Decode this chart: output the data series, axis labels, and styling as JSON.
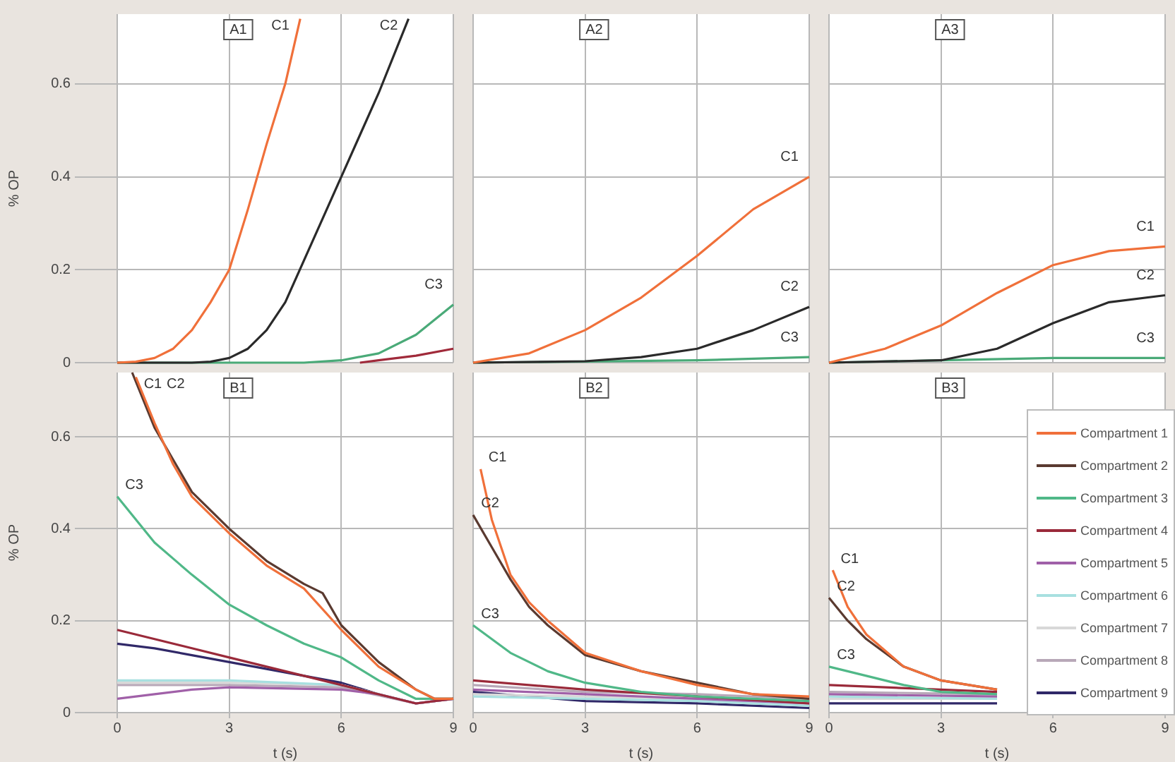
{
  "chart_data": [
    {
      "type": "line",
      "title": "A1",
      "ylabel": "% OP",
      "xlim": [
        0,
        9
      ],
      "ylim": [
        0,
        0.75
      ],
      "xticks": [
        0,
        3,
        6,
        9
      ],
      "yticks": [
        0,
        0.2,
        0.4,
        0.6
      ],
      "grid": true,
      "tick_labels": "y",
      "series": [
        {
          "color": "#f0703a",
          "x": [
            0,
            0.5,
            1,
            1.5,
            2,
            2.5,
            3,
            3.5,
            4,
            4.5,
            4.9
          ],
          "values": [
            0,
            0.002,
            0.01,
            0.03,
            0.07,
            0.13,
            0.2,
            0.33,
            0.47,
            0.6,
            0.74
          ]
        },
        {
          "color": "#2a2a2a",
          "x": [
            0,
            2,
            2.5,
            3,
            3.5,
            4,
            4.5,
            5,
            5.5,
            6,
            6.5,
            7,
            7.5,
            7.8
          ],
          "values": [
            0,
            0,
            0.002,
            0.01,
            0.03,
            0.07,
            0.13,
            0.22,
            0.31,
            0.4,
            0.49,
            0.58,
            0.68,
            0.74
          ]
        },
        {
          "color": "#4aaa78",
          "x": [
            0,
            5,
            6,
            7,
            8,
            9
          ],
          "values": [
            0,
            0,
            0.005,
            0.02,
            0.06,
            0.125
          ]
        },
        {
          "color": "#a02a3a",
          "x": [
            6.5,
            7,
            8,
            9
          ],
          "values": [
            0,
            0.005,
            0.015,
            0.03
          ]
        }
      ],
      "annotations": [
        "C1",
        "C2",
        "C3"
      ]
    },
    {
      "type": "line",
      "title": "A2",
      "xlim": [
        0,
        9
      ],
      "ylim": [
        0,
        0.75
      ],
      "xticks": [
        0,
        3,
        6,
        9
      ],
      "yticks": [
        0,
        0.2,
        0.4,
        0.6
      ],
      "grid": true,
      "tick_labels": false,
      "series": [
        {
          "color": "#f0703a",
          "x": [
            0,
            1.5,
            3,
            4.5,
            6,
            7.5,
            9
          ],
          "values": [
            0,
            0.02,
            0.07,
            0.14,
            0.23,
            0.33,
            0.4
          ]
        },
        {
          "color": "#2a2a2a",
          "x": [
            0,
            3,
            4.5,
            6,
            7.5,
            9
          ],
          "values": [
            0,
            0.003,
            0.012,
            0.03,
            0.07,
            0.12
          ]
        },
        {
          "color": "#4aaa78",
          "x": [
            0,
            6,
            9
          ],
          "values": [
            0,
            0.005,
            0.012
          ]
        }
      ],
      "annotations": [
        "C1",
        "C2",
        "C3"
      ]
    },
    {
      "type": "line",
      "title": "A3",
      "xlim": [
        0,
        9
      ],
      "ylim": [
        0,
        0.75
      ],
      "xticks": [
        0,
        3,
        6,
        9
      ],
      "yticks": [
        0,
        0.2,
        0.4,
        0.6
      ],
      "grid": true,
      "tick_labels": false,
      "series": [
        {
          "color": "#f0703a",
          "x": [
            0,
            1.5,
            3,
            4.5,
            6,
            7.5,
            9
          ],
          "values": [
            0,
            0.03,
            0.08,
            0.15,
            0.21,
            0.24,
            0.25
          ]
        },
        {
          "color": "#2a2a2a",
          "x": [
            0,
            3,
            4.5,
            6,
            7.5,
            9
          ],
          "values": [
            0,
            0.005,
            0.03,
            0.085,
            0.13,
            0.145
          ]
        },
        {
          "color": "#4aaa78",
          "x": [
            0,
            3,
            6,
            9
          ],
          "values": [
            0,
            0.005,
            0.01,
            0.01
          ]
        }
      ],
      "annotations": [
        "C1",
        "C2",
        "C3"
      ]
    },
    {
      "type": "line",
      "title": "B1",
      "xlabel": "t (s)",
      "ylabel": "% OP",
      "xlim": [
        0,
        9
      ],
      "ylim": [
        0,
        0.74
      ],
      "xticks": [
        0,
        3,
        6,
        9
      ],
      "yticks": [
        0,
        0.2,
        0.4,
        0.6
      ],
      "grid": true,
      "series": [
        {
          "color": "#f0703a",
          "x": [
            0.5,
            1,
            1.5,
            2,
            3,
            4,
            5,
            6,
            7,
            8,
            8.5,
            9
          ],
          "values": [
            0.73,
            0.63,
            0.54,
            0.47,
            0.39,
            0.32,
            0.27,
            0.18,
            0.1,
            0.05,
            0.03,
            0.03
          ]
        },
        {
          "color": "#5a3a30",
          "x": [
            0.4,
            1,
            1.5,
            2,
            3,
            4,
            5,
            5.5,
            6,
            7,
            8,
            8.5,
            9
          ],
          "values": [
            0.74,
            0.62,
            0.55,
            0.48,
            0.4,
            0.33,
            0.28,
            0.26,
            0.19,
            0.11,
            0.05,
            0.03,
            0.03
          ]
        },
        {
          "color": "#50b888",
          "x": [
            0,
            1,
            2,
            3,
            4,
            5,
            6,
            7,
            8,
            9
          ],
          "values": [
            0.47,
            0.37,
            0.3,
            0.235,
            0.19,
            0.15,
            0.12,
            0.07,
            0.03,
            0.03
          ]
        },
        {
          "color": "#9a2a3a",
          "x": [
            0,
            1,
            2,
            3,
            4,
            5,
            6,
            7,
            8,
            9
          ],
          "values": [
            0.18,
            0.16,
            0.14,
            0.12,
            0.1,
            0.08,
            0.06,
            0.04,
            0.02,
            0.03
          ]
        },
        {
          "color": "#a060a8",
          "x": [
            0,
            1,
            2,
            3,
            6,
            7,
            8,
            9
          ],
          "values": [
            0.03,
            0.04,
            0.05,
            0.055,
            0.05,
            0.04,
            0.02,
            0.03
          ]
        },
        {
          "color": "#a8e0e0",
          "x": [
            0,
            3,
            6,
            8,
            9
          ],
          "values": [
            0.07,
            0.07,
            0.06,
            0.02,
            0.03
          ]
        },
        {
          "color": "#d8d8d8",
          "x": [
            0,
            3,
            6,
            8,
            9
          ],
          "values": [
            0.065,
            0.065,
            0.06,
            0.02,
            0.03
          ]
        },
        {
          "color": "#b8a8b8",
          "x": [
            0,
            3,
            6,
            8,
            9
          ],
          "values": [
            0.06,
            0.06,
            0.055,
            0.02,
            0.03
          ]
        },
        {
          "color": "#302868",
          "x": [
            0,
            1,
            2,
            3,
            4,
            5,
            6,
            7,
            8,
            9
          ],
          "values": [
            0.15,
            0.14,
            0.125,
            0.11,
            0.095,
            0.08,
            0.065,
            0.04,
            0.02,
            0.03
          ]
        }
      ],
      "annotations": [
        "C1",
        "C2",
        "C3"
      ]
    },
    {
      "type": "line",
      "title": "B2",
      "xlabel": "t (s)",
      "xlim": [
        0,
        9
      ],
      "ylim": [
        0,
        0.74
      ],
      "xticks": [
        0,
        3,
        6,
        9
      ],
      "yticks": [
        0,
        0.2,
        0.4,
        0.6
      ],
      "grid": true,
      "tick_labels": "x",
      "series": [
        {
          "color": "#f0703a",
          "x": [
            0.2,
            0.5,
            1,
            1.5,
            2,
            3,
            4.5,
            6,
            7.5,
            9
          ],
          "values": [
            0.53,
            0.42,
            0.3,
            0.24,
            0.2,
            0.13,
            0.09,
            0.06,
            0.04,
            0.035
          ]
        },
        {
          "color": "#5a3a30",
          "x": [
            0,
            0.5,
            1,
            1.5,
            2,
            3,
            4.5,
            6,
            7.5,
            9
          ],
          "values": [
            0.43,
            0.36,
            0.29,
            0.23,
            0.19,
            0.125,
            0.09,
            0.065,
            0.04,
            0.03
          ]
        },
        {
          "color": "#50b888",
          "x": [
            0,
            1,
            2,
            3,
            4.5,
            6,
            7.5,
            9
          ],
          "values": [
            0.19,
            0.13,
            0.09,
            0.065,
            0.045,
            0.035,
            0.03,
            0.025
          ]
        },
        {
          "color": "#9a2a3a",
          "x": [
            0,
            3,
            6,
            9
          ],
          "values": [
            0.07,
            0.05,
            0.035,
            0.02
          ]
        },
        {
          "color": "#a060a8",
          "x": [
            0,
            3,
            6,
            9
          ],
          "values": [
            0.05,
            0.04,
            0.03,
            0.02
          ]
        },
        {
          "color": "#a8e0e0",
          "x": [
            0,
            3,
            6,
            9
          ],
          "values": [
            0.035,
            0.03,
            0.025,
            0.015
          ]
        },
        {
          "color": "#d8d8d8",
          "x": [
            0,
            3,
            6,
            9
          ],
          "values": [
            0.04,
            0.035,
            0.03,
            0.02
          ]
        },
        {
          "color": "#b8a8b8",
          "x": [
            0,
            3,
            6,
            9
          ],
          "values": [
            0.06,
            0.045,
            0.04,
            0.03
          ]
        },
        {
          "color": "#302868",
          "x": [
            0,
            3,
            6,
            9
          ],
          "values": [
            0.045,
            0.025,
            0.02,
            0.01
          ]
        }
      ],
      "annotations": [
        "C1",
        "C2",
        "C3"
      ]
    },
    {
      "type": "line",
      "title": "B3",
      "xlabel": "t (s)",
      "xlim": [
        0,
        9
      ],
      "ylim": [
        0,
        0.74
      ],
      "xticks": [
        0,
        3,
        6,
        9
      ],
      "yticks": [
        0,
        0.2,
        0.4,
        0.6
      ],
      "grid": true,
      "tick_labels": "x",
      "legend": "right",
      "series": [
        {
          "name": "Compartment 1",
          "color": "#f0703a",
          "x": [
            0.1,
            0.5,
            1,
            2,
            3,
            4.5
          ],
          "values": [
            0.31,
            0.23,
            0.17,
            0.1,
            0.07,
            0.05
          ]
        },
        {
          "name": "Compartment 2",
          "color": "#5a3a30",
          "x": [
            0,
            0.5,
            1,
            2,
            3,
            4.5
          ],
          "values": [
            0.25,
            0.2,
            0.16,
            0.1,
            0.07,
            0.05
          ]
        },
        {
          "name": "Compartment 3",
          "color": "#50b888",
          "x": [
            0,
            1,
            2,
            3,
            4.5
          ],
          "values": [
            0.1,
            0.08,
            0.06,
            0.045,
            0.04
          ]
        },
        {
          "name": "Compartment 4",
          "color": "#9a2a3a",
          "x": [
            0,
            4.5
          ],
          "values": [
            0.06,
            0.045
          ]
        },
        {
          "name": "Compartment 5",
          "color": "#a060a8",
          "x": [
            0,
            4.5
          ],
          "values": [
            0.04,
            0.035
          ]
        },
        {
          "name": "Compartment 6",
          "color": "#a8e0e0",
          "x": [
            0,
            4.5
          ],
          "values": [
            0.035,
            0.03
          ]
        },
        {
          "name": "Compartment 7",
          "color": "#d8d8d8",
          "x": [
            0,
            4.5
          ],
          "values": [
            0.03,
            0.03
          ]
        },
        {
          "name": "Compartment 8",
          "color": "#b8a8b8",
          "x": [
            0,
            4.5
          ],
          "values": [
            0.045,
            0.04
          ]
        },
        {
          "name": "Compartment 9",
          "color": "#302868",
          "x": [
            0,
            4.5
          ],
          "values": [
            0.02,
            0.02
          ]
        }
      ],
      "annotations": [
        "C1",
        "C2",
        "C3"
      ]
    }
  ]
}
